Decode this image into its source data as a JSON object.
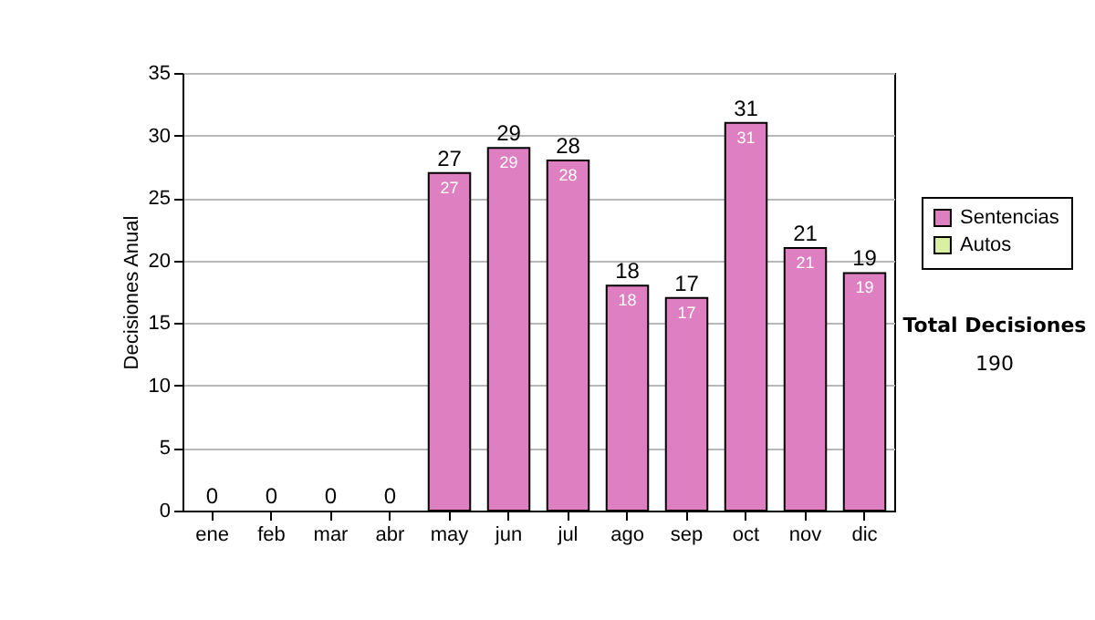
{
  "chart_data": {
    "type": "bar",
    "ylabel": "Decisiones Anual",
    "categories": [
      "ene",
      "feb",
      "mar",
      "abr",
      "may",
      "jun",
      "jul",
      "ago",
      "sep",
      "oct",
      "nov",
      "dic"
    ],
    "stacked": true,
    "series": [
      {
        "name": "Sentencias",
        "color": "#dd7fc0",
        "values": [
          0,
          0,
          0,
          0,
          27,
          29,
          28,
          18,
          17,
          31,
          21,
          19
        ],
        "value_labels": [
          null,
          null,
          null,
          null,
          "27",
          "29",
          "28",
          "18",
          "17",
          "31",
          "21",
          "19"
        ]
      },
      {
        "name": "Autos",
        "color": "#d9f0a3",
        "values": [
          0,
          0,
          0,
          0,
          0,
          0,
          0,
          0,
          0,
          0,
          0,
          0
        ]
      }
    ],
    "totals": [
      "0",
      "0",
      "0",
      "0",
      "27",
      "29",
      "28",
      "18",
      "17",
      "31",
      "21",
      "19"
    ],
    "ylim": [
      0,
      35
    ],
    "yticks": [
      0,
      5,
      10,
      15,
      20,
      25,
      30,
      35
    ],
    "grid": "y",
    "legend": "right",
    "annotations": [
      "Total Decisiones",
      "190"
    ]
  }
}
